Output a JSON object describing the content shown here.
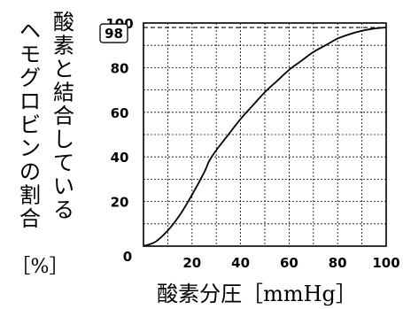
{
  "chart_data": {
    "type": "line",
    "xlabel": "酸素分圧［mmHg］",
    "ylabel_col1": "酸素と結合している",
    "ylabel_col2": "ヘモグロビンの割合",
    "ylabel_unit": "［%］",
    "xlim": [
      0,
      100
    ],
    "ylim": [
      0,
      100
    ],
    "x_ticks": [
      20,
      40,
      60,
      80,
      100
    ],
    "y_ticks": [
      20,
      40,
      60,
      80,
      100
    ],
    "origin_label": "0",
    "grid": true,
    "grid_step": 10,
    "annotation": {
      "label": "98",
      "y": 98
    },
    "series": [
      {
        "x": [
          0,
          5,
          10,
          15,
          20,
          25,
          27,
          30,
          35,
          40,
          45,
          50,
          55,
          60,
          65,
          70,
          75,
          80,
          85,
          90,
          95,
          100
        ],
        "y": [
          0,
          2,
          7,
          14,
          23,
          33,
          38,
          43,
          50,
          57,
          63,
          69,
          74,
          79,
          83,
          87,
          90,
          93,
          95,
          96.5,
          97.5,
          98
        ]
      }
    ]
  }
}
